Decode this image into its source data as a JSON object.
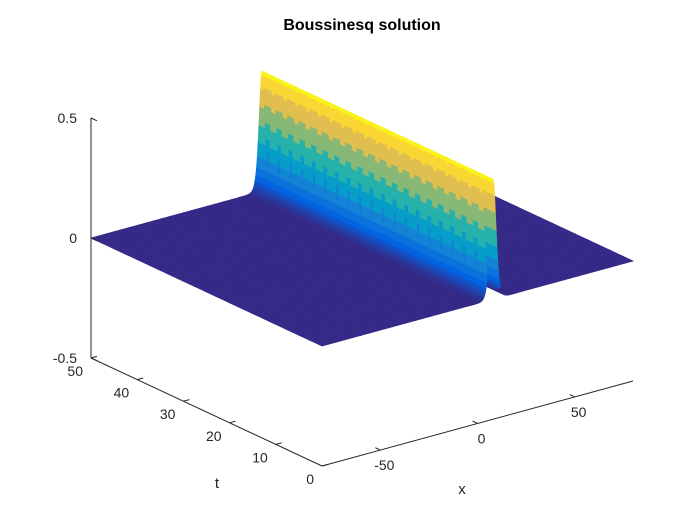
{
  "chart_data": {
    "type": "surface",
    "title": "Boussinesq solution",
    "xlabel": "x",
    "ylabel": "t",
    "zlabel": "",
    "xlim": [
      -80,
      80
    ],
    "ylim": [
      0,
      50
    ],
    "zlim": [
      -0.5,
      0.5
    ],
    "x_ticks": [
      -50,
      0,
      50
    ],
    "y_ticks": [
      0,
      10,
      20,
      30,
      40,
      50
    ],
    "z_ticks": [
      -0.5,
      0,
      0.5
    ],
    "x_tick_labels": [
      "-50",
      "0",
      "50"
    ],
    "y_tick_labels": [
      "0",
      "10",
      "20",
      "30",
      "40",
      "50"
    ],
    "z_tick_labels": [
      "-0.5",
      "0",
      "0.5"
    ],
    "colormap": "parula",
    "grid": false,
    "solitary_wave": {
      "amplitude": 0.5,
      "baseline": 0,
      "center_x_at_t0": 8,
      "speed": 0
    }
  }
}
